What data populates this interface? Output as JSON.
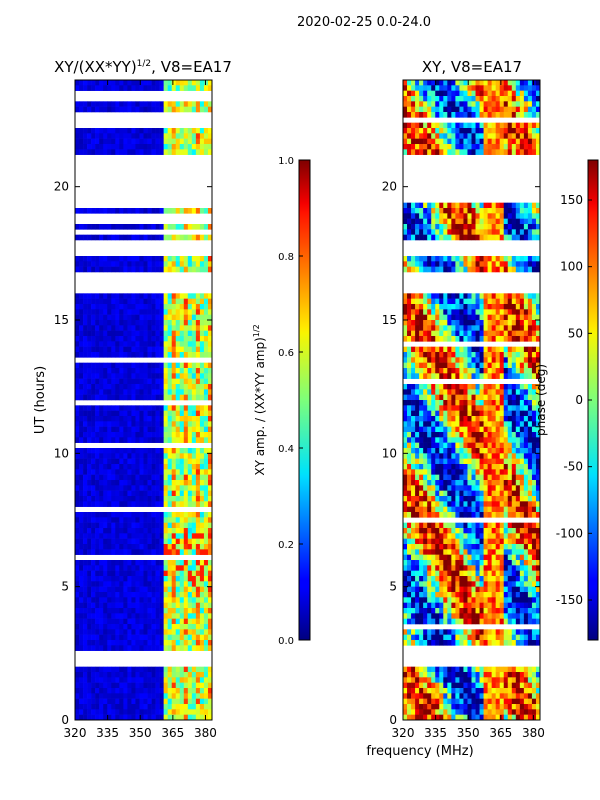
{
  "suptitle": "2020-02-25 0.0-24.0",
  "colors": {
    "background": "#ffffff",
    "gap": "#ffffff",
    "background_amp": "#00008f",
    "axis": "#000000"
  },
  "chart_data": [
    {
      "type": "heatmap",
      "title_prefix": "XY/(XX*YY)",
      "title_exponent": "1/2",
      "title_suffix": ", V8=EA17",
      "xlabel": "",
      "ylabel": "UT (hours)",
      "xlim": [
        320,
        383
      ],
      "ylim": [
        0,
        24
      ],
      "xticks": [
        "320",
        "335",
        "350",
        "365",
        "380"
      ],
      "yticks": [
        "0",
        "5",
        "10",
        "15",
        "20"
      ],
      "colorbar": {
        "label_prefix": "XY amp. / (XX*YY amp)",
        "label_exponent": "1/2",
        "vmin": 0.0,
        "vmax": 1.0,
        "ticks": [
          "0.0",
          "0.2",
          "0.4",
          "0.6",
          "0.8",
          "1.0"
        ]
      },
      "gaps_hours": [
        [
          16.0,
          16.8
        ],
        [
          17.4,
          18.0
        ],
        [
          19.4,
          21.2
        ],
        [
          22.3,
          22.7
        ],
        [
          23.3,
          23.6
        ],
        [
          2.0,
          2.5
        ]
      ],
      "bright_band_mhz": [
        361,
        383
      ],
      "peak_value": 0.85
    },
    {
      "type": "heatmap",
      "title": "XY, V8=EA17",
      "xlabel": "frequency (MHz)",
      "ylabel": "",
      "xlim": [
        320,
        383
      ],
      "ylim": [
        0,
        24
      ],
      "xticks": [
        "320",
        "335",
        "350",
        "365",
        "380"
      ],
      "yticks": [
        "0",
        "5",
        "10",
        "15",
        "20"
      ],
      "colorbar": {
        "label": "phase (deg)",
        "vmin": -180,
        "vmax": 180,
        "ticks": [
          "-150",
          "-100",
          "-50",
          "0",
          "50",
          "100",
          "150"
        ]
      },
      "gaps_hours": [
        [
          16.0,
          16.8
        ],
        [
          17.4,
          18.0
        ],
        [
          19.4,
          21.2
        ],
        [
          2.0,
          2.5
        ]
      ]
    }
  ]
}
